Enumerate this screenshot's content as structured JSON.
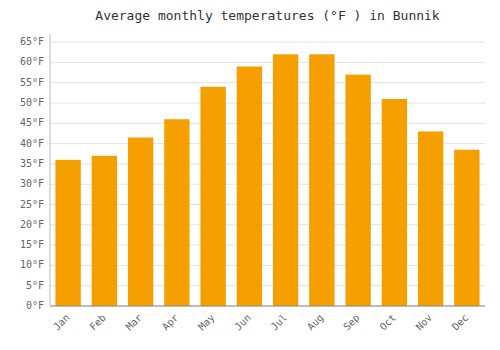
{
  "chart_data": {
    "type": "bar",
    "title": "Average monthly temperatures (°F ) in Bunnik",
    "categories": [
      "Jan",
      "Feb",
      "Mar",
      "Apr",
      "May",
      "Jun",
      "Jul",
      "Aug",
      "Sep",
      "Oct",
      "Nov",
      "Dec"
    ],
    "values": [
      36,
      37,
      41.5,
      46,
      54,
      59,
      62,
      62,
      57,
      51,
      43,
      38.5
    ],
    "color": "#F5A000",
    "ylim": [
      0,
      67
    ],
    "yticks": [
      {
        "value": 0,
        "label": "0°F"
      },
      {
        "value": 5,
        "label": "5°F"
      },
      {
        "value": 10,
        "label": "10°F"
      },
      {
        "value": 15,
        "label": "15°F"
      },
      {
        "value": 20,
        "label": "20°F"
      },
      {
        "value": 25,
        "label": "25°F"
      },
      {
        "value": 30,
        "label": "30°F"
      },
      {
        "value": 35,
        "label": "35°F"
      },
      {
        "value": 40,
        "label": "40°F"
      },
      {
        "value": 45,
        "label": "45°F"
      },
      {
        "value": 50,
        "label": "50°F"
      },
      {
        "value": 55,
        "label": "55°F"
      },
      {
        "value": 60,
        "label": "60°F"
      },
      {
        "value": 65,
        "label": "65°F"
      }
    ],
    "grid": true
  }
}
